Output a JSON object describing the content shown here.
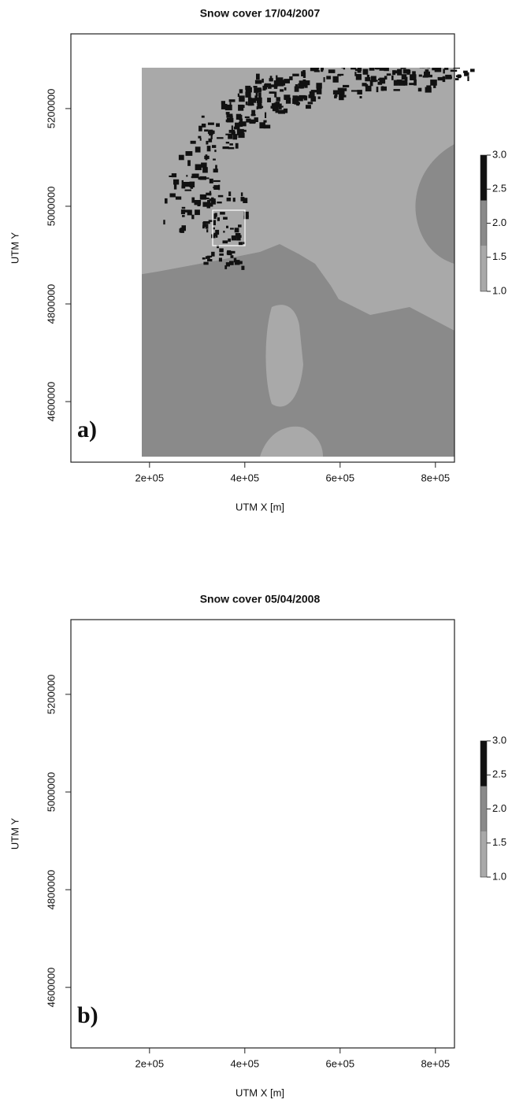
{
  "chart_data": [
    {
      "type": "raster",
      "title": "Snow cover 17/04/2007",
      "xlabel": "UTM X [m]",
      "ylabel": "UTM Y",
      "panel_label": "a)",
      "xlim": [
        35000,
        840000
      ],
      "ylim": [
        4476000,
        5353000
      ],
      "xticks": [
        {
          "value": 200000,
          "label": "2e+05"
        },
        {
          "value": 400000,
          "label": "4e+05"
        },
        {
          "value": 600000,
          "label": "6e+05"
        },
        {
          "value": 800000,
          "label": "8e+05"
        }
      ],
      "yticks": [
        4600000,
        4800000,
        5000000,
        5200000
      ],
      "colorbar": {
        "lim": [
          1,
          3
        ],
        "ticks": [
          {
            "value": 1,
            "label": "1.0"
          },
          {
            "value": 1.5,
            "label": "1.5"
          },
          {
            "value": 2,
            "label": "2.0"
          },
          {
            "value": 2.5,
            "label": "2.5"
          },
          {
            "value": 3,
            "label": "3.0"
          }
        ],
        "colors": [
          "#a9a9a9",
          "#8a8a8a",
          "#111111"
        ]
      }
    },
    {
      "type": "raster",
      "title": "Snow cover 05/04/2008",
      "xlabel": "UTM X [m]",
      "ylabel": "UTM Y",
      "panel_label": "b)",
      "xlim": [
        35000,
        840000
      ],
      "ylim": [
        4476000,
        5353000
      ],
      "xticks": [
        {
          "value": 200000,
          "label": "2e+05"
        },
        {
          "value": 400000,
          "label": "4e+05"
        },
        {
          "value": 600000,
          "label": "6e+05"
        },
        {
          "value": 800000,
          "label": "8e+05"
        }
      ],
      "yticks": [
        4600000,
        4800000,
        5000000,
        5200000
      ],
      "colorbar": {
        "lim": [
          1,
          3
        ],
        "ticks": [
          {
            "value": 1,
            "label": "1.0"
          },
          {
            "value": 1.5,
            "label": "1.5"
          },
          {
            "value": 2,
            "label": "2.0"
          },
          {
            "value": 2.5,
            "label": "2.5"
          },
          {
            "value": 3,
            "label": "3.0"
          }
        ],
        "colors": [
          "#a9a9a9",
          "#8a8a8a",
          "#111111"
        ]
      }
    }
  ]
}
